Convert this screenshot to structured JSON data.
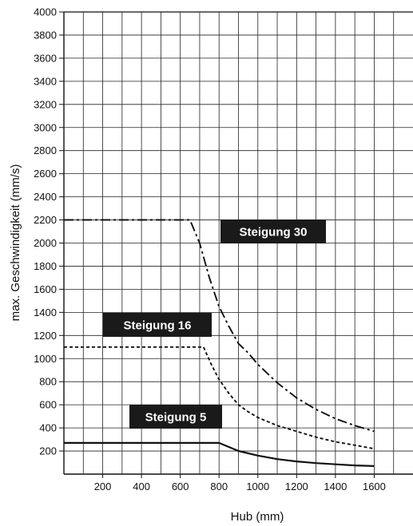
{
  "chart_data": {
    "type": "line",
    "xlabel": "Hub (mm)",
    "ylabel": "max. Geschwindigkeit (mm/s)",
    "xlim": [
      0,
      1800
    ],
    "ylim": [
      0,
      4000
    ],
    "x_ticks": [
      200,
      400,
      600,
      800,
      1000,
      1200,
      1400,
      1600
    ],
    "y_ticks": [
      200,
      400,
      600,
      800,
      1000,
      1200,
      1400,
      1600,
      1800,
      2000,
      2200,
      2400,
      2600,
      2800,
      3000,
      3200,
      3400,
      3600,
      3800,
      4000
    ],
    "grid": true,
    "series": [
      {
        "name": "Steigung 30",
        "style": "dash-dot",
        "x": [
          0,
          650,
          700,
          750,
          800,
          850,
          900,
          950,
          1000,
          1100,
          1200,
          1300,
          1400,
          1500,
          1600
        ],
        "y": [
          2200,
          2200,
          2000,
          1700,
          1450,
          1280,
          1130,
          1050,
          950,
          790,
          660,
          560,
          480,
          420,
          370
        ]
      },
      {
        "name": "Steigung 16",
        "style": "dashed",
        "x": [
          0,
          720,
          760,
          800,
          850,
          900,
          950,
          1000,
          1100,
          1200,
          1300,
          1400,
          1500,
          1600
        ],
        "y": [
          1100,
          1100,
          950,
          820,
          700,
          600,
          540,
          490,
          420,
          370,
          320,
          280,
          250,
          220
        ]
      },
      {
        "name": "Steigung 5",
        "style": "solid",
        "x": [
          0,
          800,
          900,
          1000,
          1100,
          1200,
          1300,
          1400,
          1500,
          1600
        ],
        "y": [
          270,
          270,
          200,
          160,
          130,
          110,
          95,
          85,
          75,
          70
        ]
      }
    ]
  }
}
